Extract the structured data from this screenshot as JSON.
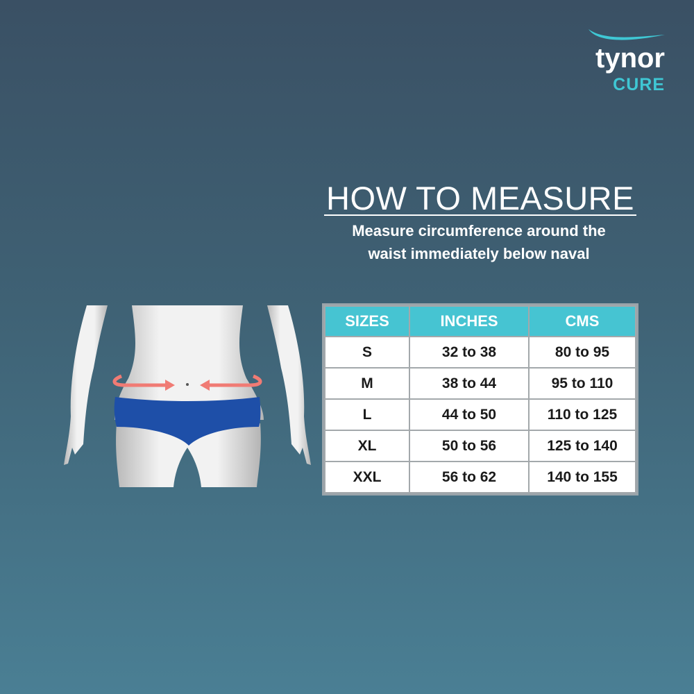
{
  "brand": {
    "name": "tynor",
    "sub": "CURE",
    "accent": "#46c4d2"
  },
  "heading": {
    "title": "HOW TO MEASURE",
    "subtitle_line1": "Measure circumference around the",
    "subtitle_line2": "waist immediately below naval"
  },
  "size_table": {
    "headers": [
      "SIZES",
      "INCHES",
      "CMS"
    ],
    "rows": [
      [
        "S",
        "32 to 38",
        "80 to 95"
      ],
      [
        "M",
        "38 to 44",
        "95 to 110"
      ],
      [
        "L",
        "44 to 50",
        "110 to 125"
      ],
      [
        "XL",
        "50 to 56",
        "125 to 140"
      ],
      [
        "XXL",
        "56 to 62",
        "140 to 155"
      ]
    ]
  }
}
